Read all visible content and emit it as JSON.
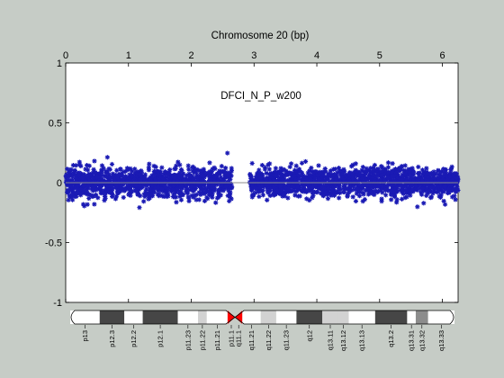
{
  "chart_data": {
    "type": "scatter",
    "title": "Chromosome 20 (bp)",
    "annotation": "DFCI_N_P_w200",
    "x_tick_labels": [
      "0",
      "1",
      "2",
      "3",
      "4",
      "5",
      "6"
    ],
    "y_tick_labels": [
      "1",
      "0.5",
      "0",
      "-0.5",
      "-1"
    ],
    "x_ticks": [
      0,
      1,
      2,
      3,
      4,
      5,
      6
    ],
    "y_ticks": [
      1,
      0.5,
      0,
      -0.5,
      -1
    ],
    "xlim": [
      0,
      6.25
    ],
    "ylim": [
      -1,
      1
    ],
    "x_axis_location": "top",
    "grid": false,
    "reference_line": {
      "y": 0,
      "color": "#8c8c8c"
    },
    "series": [
      {
        "marker": "asterisk",
        "color": "#1a1ab4",
        "segments": [
          {
            "x_start": 0.0,
            "x_end": 2.65,
            "y_min": -0.3,
            "y_max": 0.35,
            "y_typical": [
              -0.2,
              0.2
            ]
          },
          {
            "x_start": 2.93,
            "x_end": 6.25,
            "y_min": -0.3,
            "y_max": 0.38,
            "y_typical": [
              -0.2,
              0.2
            ]
          }
        ]
      }
    ],
    "ideogram": {
      "centromere_x": 2.68,
      "bands": [
        {
          "label": "p13",
          "x_start": 0.0,
          "x_end": 0.48,
          "stain": "white"
        },
        {
          "label": "p12.3",
          "x_start": 0.48,
          "x_end": 0.88,
          "stain": "dark"
        },
        {
          "label": "p12.2",
          "x_start": 0.88,
          "x_end": 1.18,
          "stain": "white"
        },
        {
          "label": "p12.1",
          "x_start": 1.18,
          "x_end": 1.75,
          "stain": "dark"
        },
        {
          "label": "p11.23",
          "x_start": 1.75,
          "x_end": 2.08,
          "stain": "white"
        },
        {
          "label": "p11.22",
          "x_start": 2.08,
          "x_end": 2.22,
          "stain": "light"
        },
        {
          "label": "p11.21",
          "x_start": 2.22,
          "x_end": 2.56,
          "stain": "white"
        },
        {
          "label": "p11.1",
          "x_start": 2.56,
          "x_end": 2.68,
          "stain": "centromere"
        },
        {
          "label": "q11.1",
          "x_start": 2.68,
          "x_end": 2.8,
          "stain": "centromere"
        },
        {
          "label": "q11.21",
          "x_start": 2.8,
          "x_end": 3.1,
          "stain": "white"
        },
        {
          "label": "q11.22",
          "x_start": 3.1,
          "x_end": 3.35,
          "stain": "light"
        },
        {
          "label": "q11.23",
          "x_start": 3.35,
          "x_end": 3.68,
          "stain": "white"
        },
        {
          "label": "q12",
          "x_start": 3.68,
          "x_end": 4.1,
          "stain": "dark"
        },
        {
          "label": "q13.11",
          "x_start": 4.1,
          "x_end": 4.36,
          "stain": "light"
        },
        {
          "label": "q13.12",
          "x_start": 4.36,
          "x_end": 4.53,
          "stain": "light"
        },
        {
          "label": "q13.13",
          "x_start": 4.53,
          "x_end": 4.96,
          "stain": "white"
        },
        {
          "label": "q13.2",
          "x_start": 4.96,
          "x_end": 5.48,
          "stain": "dark"
        },
        {
          "label": "q13.31",
          "x_start": 5.48,
          "x_end": 5.62,
          "stain": "white"
        },
        {
          "label": "q13.32",
          "x_start": 5.62,
          "x_end": 5.82,
          "stain": "mid"
        },
        {
          "label": "q13.33",
          "x_start": 5.82,
          "x_end": 6.25,
          "stain": "white"
        }
      ],
      "stain_colors": {
        "white": "#ffffff",
        "light": "#d2d2d2",
        "mid": "#8c8c8c",
        "dark": "#464646",
        "centromere": "#ff0000"
      }
    }
  }
}
